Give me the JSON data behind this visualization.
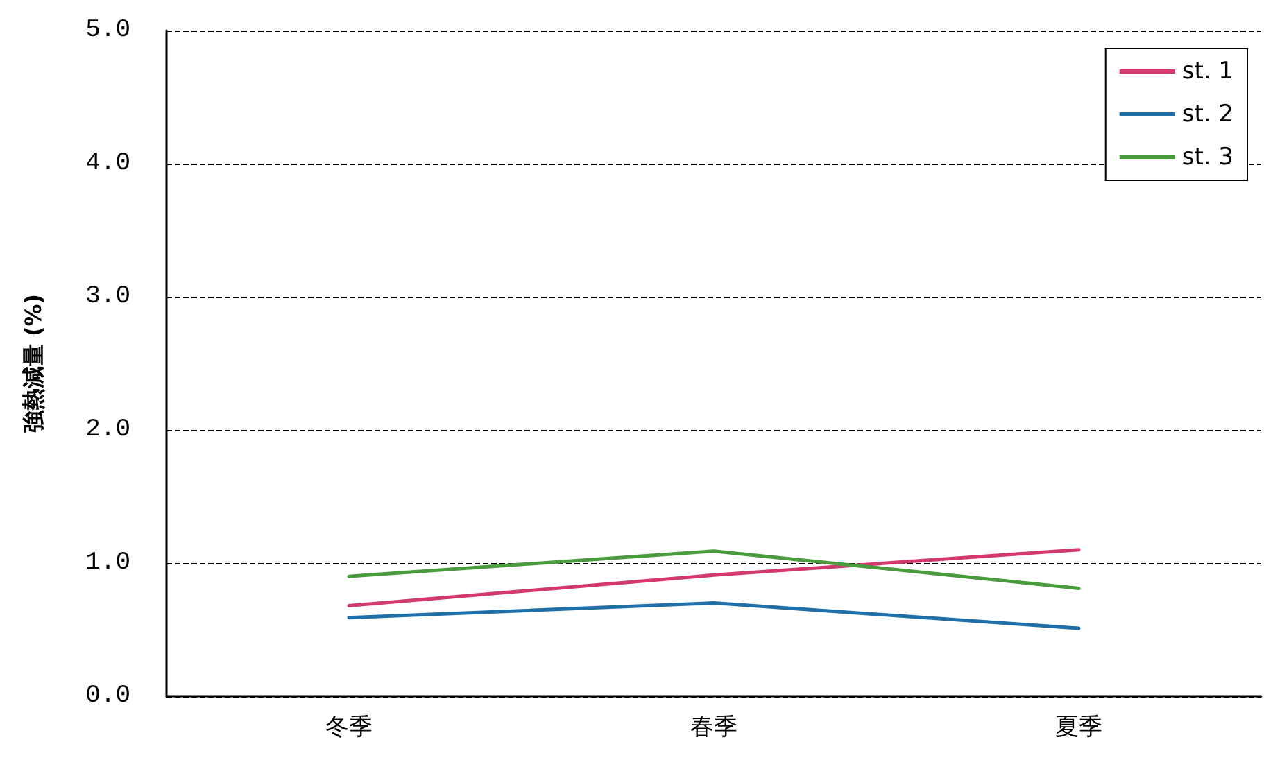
{
  "chart_data": {
    "type": "line",
    "ylabel": "強熱減量 (%)",
    "categories": [
      "冬季",
      "春季",
      "夏季"
    ],
    "series": [
      {
        "name": "st. 1",
        "color": "#d23a6e",
        "values": [
          0.68,
          0.91,
          1.1
        ]
      },
      {
        "name": "st. 2",
        "color": "#1f6fa8",
        "values": [
          0.59,
          0.7,
          0.51
        ]
      },
      {
        "name": "st. 3",
        "color": "#4a9a3e",
        "values": [
          0.9,
          1.09,
          0.81
        ]
      }
    ],
    "ylim": [
      0,
      5
    ],
    "yticks": [
      {
        "value": 0,
        "label": "0.0"
      },
      {
        "value": 1,
        "label": "1.0"
      },
      {
        "value": 2,
        "label": "2.0"
      },
      {
        "value": 3,
        "label": "3.0"
      },
      {
        "value": 4,
        "label": "4.0"
      },
      {
        "value": 5,
        "label": "5.0"
      }
    ],
    "grid": "y",
    "line_style": "solid",
    "marker": "none",
    "legend": "top right"
  }
}
